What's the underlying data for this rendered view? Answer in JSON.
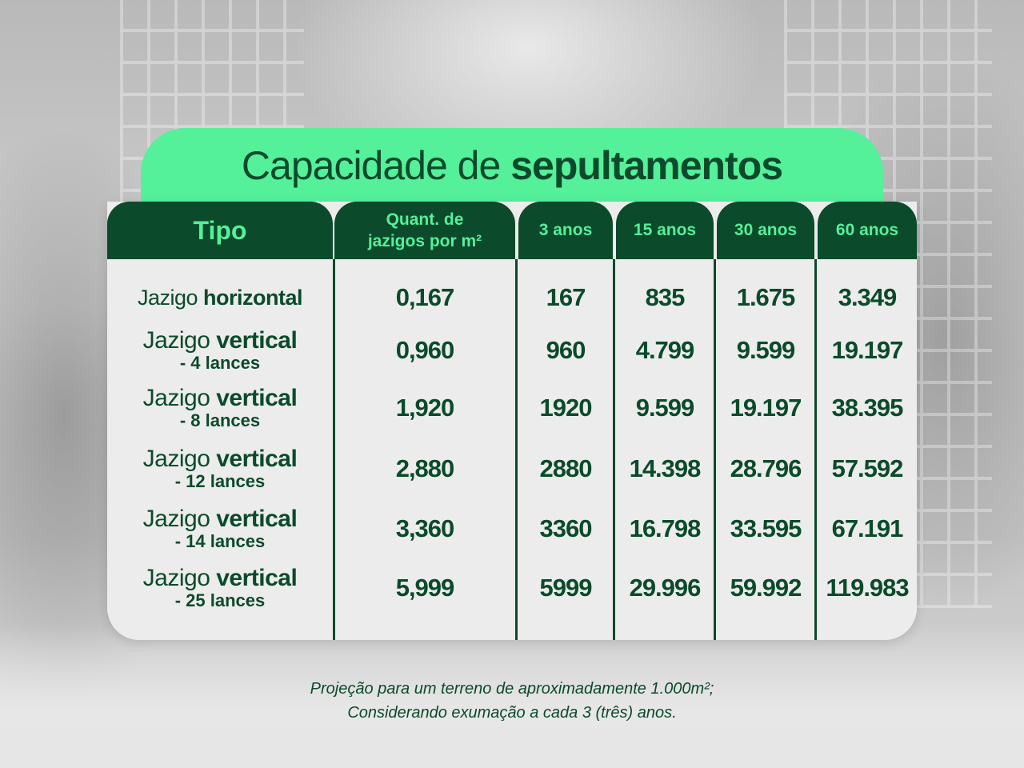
{
  "title": {
    "regular": "Capacidade de ",
    "bold": "sepultamentos"
  },
  "columns": [
    {
      "label": "Tipo"
    },
    {
      "label_line1": "Quant. de",
      "label_line2": "jazigos por m²"
    },
    {
      "label": "3 anos"
    },
    {
      "label": "15 anos"
    },
    {
      "label": "30 anos"
    },
    {
      "label": "60 anos"
    }
  ],
  "rows": [
    {
      "tipo_regular": "Jazigo ",
      "tipo_bold": "horizontal",
      "tipo_sub": "",
      "qty": "0,167",
      "y3": "167",
      "y15": "835",
      "y30": "1.675",
      "y60": "3.349"
    },
    {
      "tipo_regular": "Jazigo ",
      "tipo_bold": "vertical",
      "tipo_sub": "- 4 lances",
      "qty": "0,960",
      "y3": "960",
      "y15": "4.799",
      "y30": "9.599",
      "y60": "19.197"
    },
    {
      "tipo_regular": "Jazigo ",
      "tipo_bold": "vertical",
      "tipo_sub": "- 8 lances",
      "qty": "1,920",
      "y3": "1920",
      "y15": "9.599",
      "y30": "19.197",
      "y60": "38.395"
    },
    {
      "tipo_regular": "Jazigo ",
      "tipo_bold": "vertical",
      "tipo_sub": "- 12 lances",
      "qty": "2,880",
      "y3": "2880",
      "y15": "14.398",
      "y30": "28.796",
      "y60": "57.592"
    },
    {
      "tipo_regular": "Jazigo ",
      "tipo_bold": "vertical",
      "tipo_sub": "- 14 lances",
      "qty": "3,360",
      "y3": "3360",
      "y15": "16.798",
      "y30": "33.595",
      "y60": "67.191"
    },
    {
      "tipo_regular": "Jazigo ",
      "tipo_bold": "vertical",
      "tipo_sub": "- 25 lances",
      "qty": "5,999",
      "y3": "5999",
      "y15": "29.996",
      "y30": "59.992",
      "y60": "119.983"
    }
  ],
  "footer": {
    "line1": "Projeção para um terreno de aproximadamente 1.000m²;",
    "line2": "Considerando exumação a cada 3 (três) anos."
  },
  "colors": {
    "dark_green": "#0b4a2a",
    "mint": "#54f09a",
    "panel": "#ececec"
  }
}
